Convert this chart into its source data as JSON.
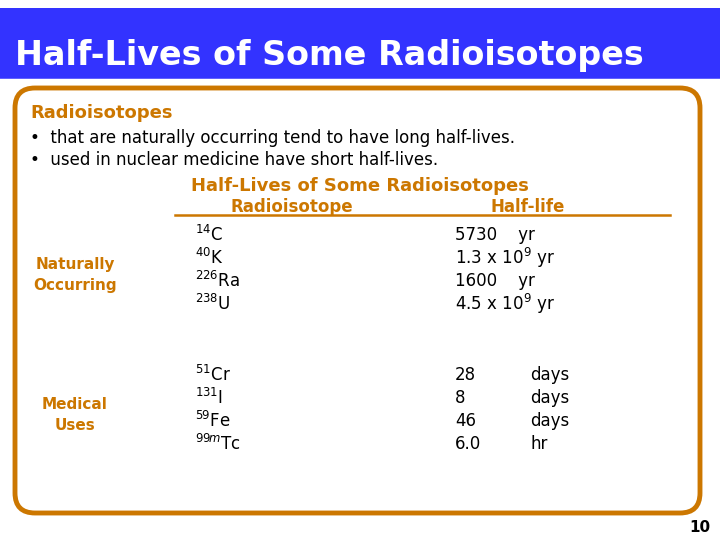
{
  "title": "Half-Lives of Some Radioisotopes",
  "title_bg": "#3333ff",
  "title_color": "#ffffff",
  "body_bg": "#ffffff",
  "bg_color": "#ffffff",
  "border_color": "#cc7700",
  "orange_color": "#cc7700",
  "bullet1": "that are naturally occurring tend to have long half-lives.",
  "bullet2": "used in nuclear medicine have short half-lives.",
  "table_title": "Half-Lives of Some Radioisotopes",
  "col1_header": "Radioisotope",
  "col2_header": "Half-life",
  "page_number": "10"
}
